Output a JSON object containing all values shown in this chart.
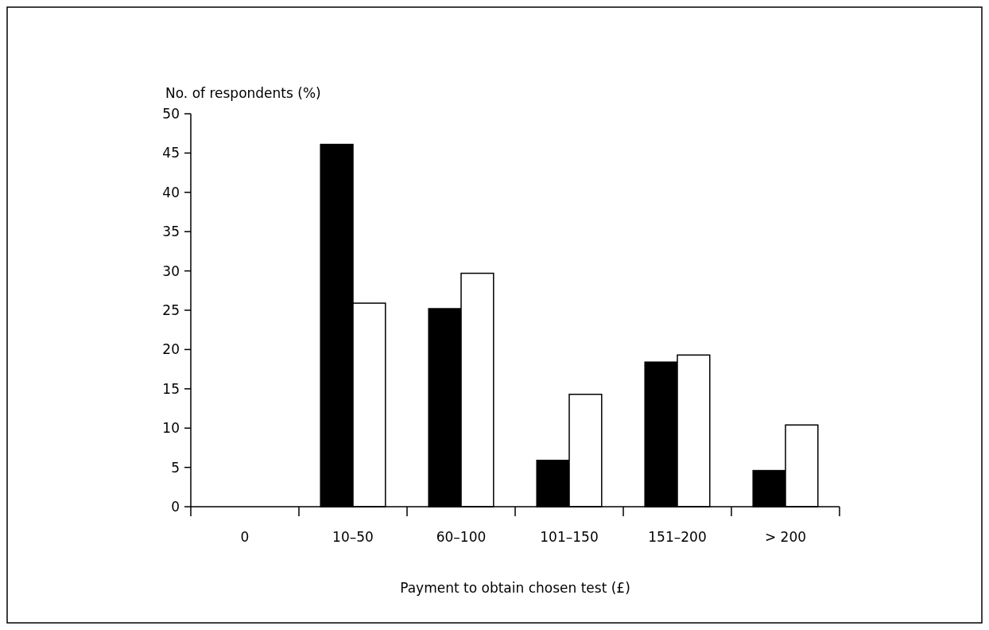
{
  "chart_data": {
    "type": "bar",
    "xlabel": "Payment to obtain chosen test (£)",
    "ylabel": "No. of respondents (%)",
    "categories": [
      "0",
      "10–50",
      "60–100",
      "101–150",
      "151–200",
      "> 200"
    ],
    "series": [
      {
        "color": "#000000",
        "values": [
          0,
          46.1,
          25.2,
          5.9,
          18.4,
          4.6
        ]
      },
      {
        "color": "#ffffff",
        "values": [
          0,
          25.9,
          29.7,
          14.3,
          19.3,
          10.4
        ]
      }
    ],
    "ylim": [
      0,
      50
    ],
    "yticks": [
      0,
      5,
      10,
      15,
      20,
      25,
      30,
      35,
      40,
      45,
      50
    ],
    "grid": false,
    "legend": false
  }
}
